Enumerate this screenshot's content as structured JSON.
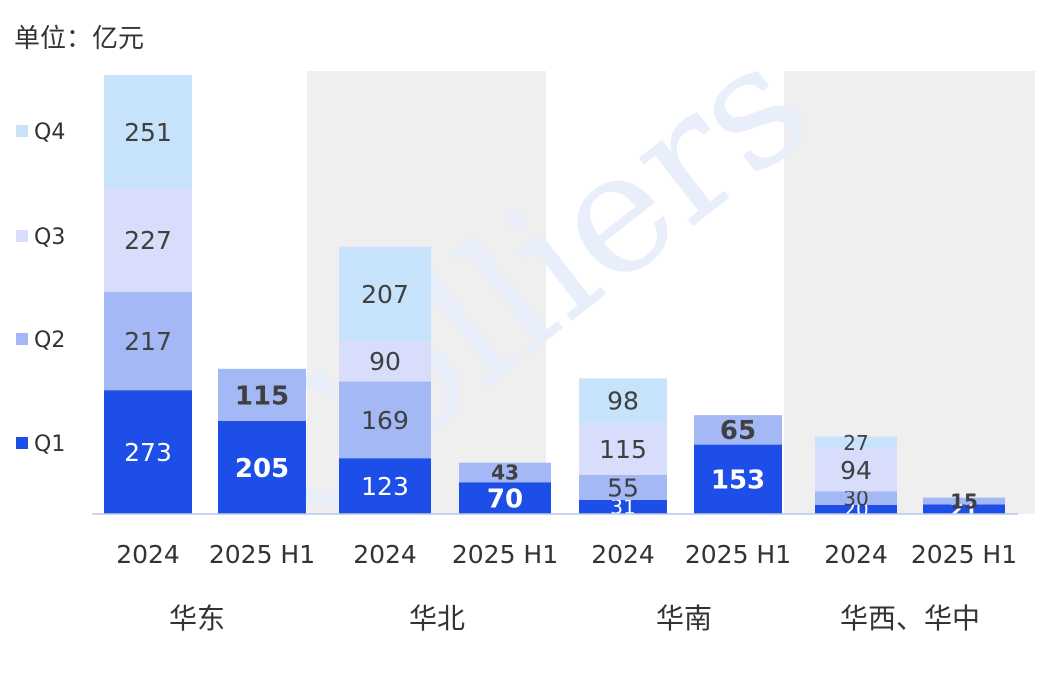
{
  "unit_label": "单位：亿元",
  "watermark": "Colliers",
  "chart_data": {
    "type": "bar",
    "stacked": true,
    "regions": [
      "华东",
      "华北",
      "华南",
      "华西、华中"
    ],
    "categories": [
      "2024",
      "2025 H1",
      "2024",
      "2025 H1",
      "2024",
      "2025 H1",
      "2024",
      "2025 H1"
    ],
    "series": [
      {
        "name": "Q1",
        "color": "#1e4ee8",
        "values": [
          273,
          205,
          123,
          70,
          31,
          153,
          20,
          21
        ]
      },
      {
        "name": "Q2",
        "color": "#a3b8f5",
        "values": [
          217,
          115,
          169,
          43,
          55,
          65,
          30,
          15
        ]
      },
      {
        "name": "Q3",
        "color": "#d7ddfa",
        "values": [
          227,
          null,
          90,
          null,
          115,
          null,
          94,
          null
        ]
      },
      {
        "name": "Q4",
        "color": "#c6e3fb",
        "values": [
          251,
          null,
          207,
          null,
          98,
          null,
          27,
          null
        ]
      }
    ],
    "legend": "left",
    "grid": false,
    "ylim": [
      0,
      970
    ]
  }
}
